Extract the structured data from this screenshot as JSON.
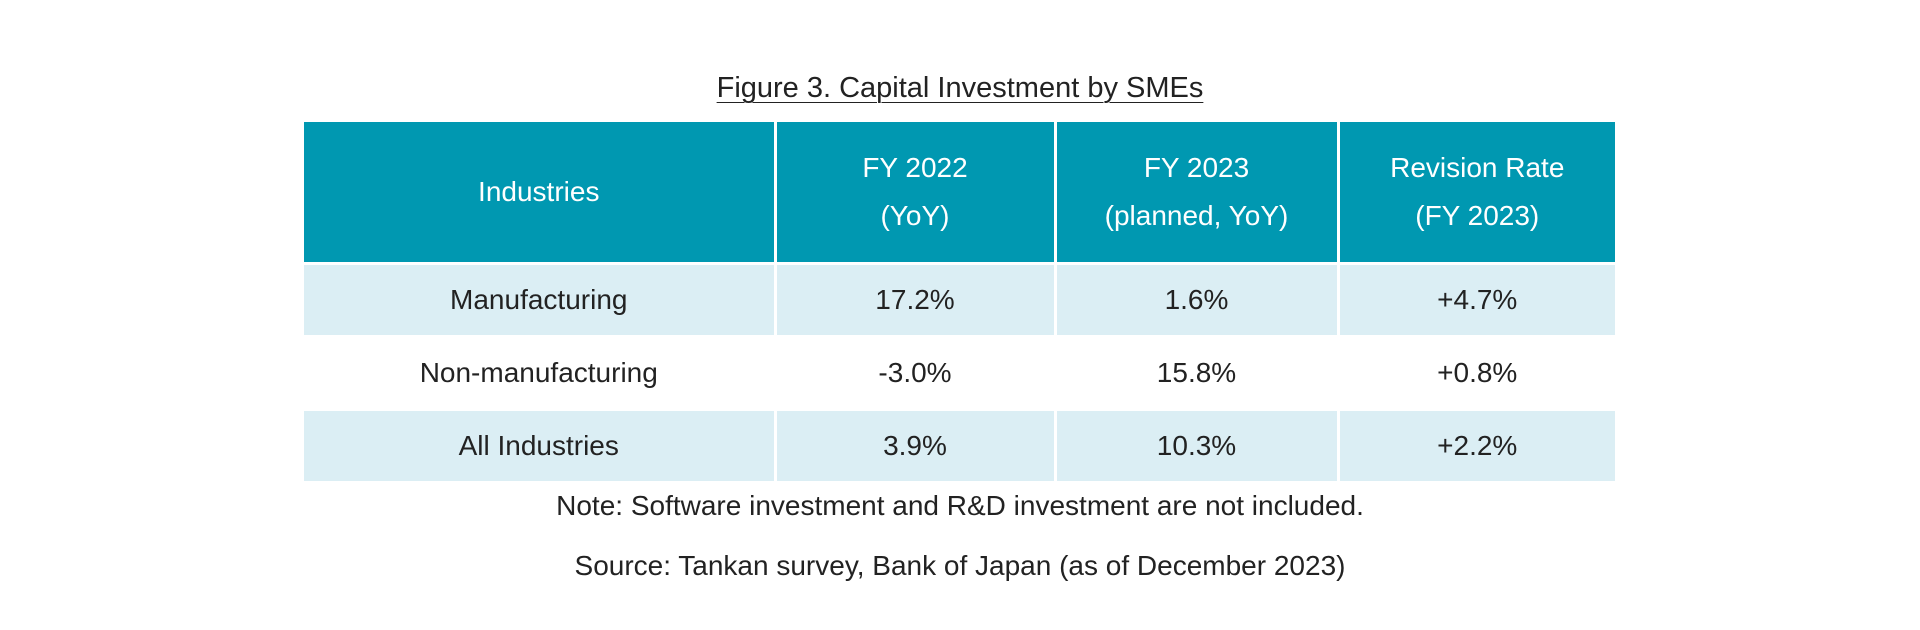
{
  "title": "Figure 3. Capital Investment by SMEs",
  "table": {
    "headers": [
      {
        "line1": "Industries",
        "line2": ""
      },
      {
        "line1": "FY 2022",
        "line2": "(YoY)"
      },
      {
        "line1": "FY 2023",
        "line2": "(planned, YoY)"
      },
      {
        "line1": "Revision Rate",
        "line2": "(FY 2023)"
      }
    ],
    "rows": [
      [
        "Manufacturing",
        "17.2%",
        "1.6%",
        "+4.7%"
      ],
      [
        "Non-manufacturing",
        "-3.0%",
        "15.8%",
        "+0.8%"
      ],
      [
        "All Industries",
        "3.9%",
        "10.3%",
        "+2.2%"
      ]
    ]
  },
  "note": "Note: Software investment and R&D investment are not included.",
  "source": "Source: Tankan survey, Bank of Japan (as of December 2023)",
  "colors": {
    "header_bg": "#0098b1",
    "row_shade": "#dbeef4"
  }
}
